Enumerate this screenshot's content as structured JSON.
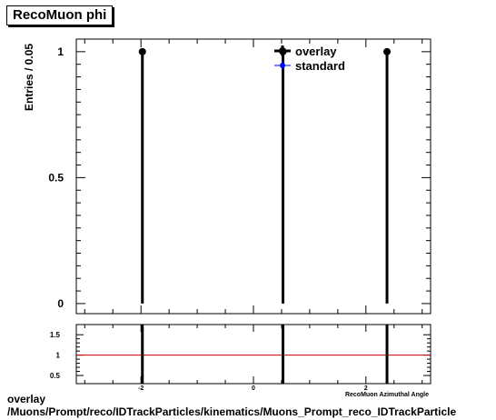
{
  "title": "RecoMuon phi",
  "footer": {
    "line1": "overlay",
    "line2": "/Muons/Prompt/reco/IDTrackParticles/kinematics/Muons_Prompt_reco_IDTrackParticle"
  },
  "chart_data": [
    {
      "type": "scatter",
      "title": "RecoMuon phi",
      "xlabel": "RecoMuon Azimuthal Angle",
      "ylabel": "Entries / 0.05",
      "xlim": [
        -3.15,
        3.15
      ],
      "ylim": [
        -0.04,
        1.05
      ],
      "yticks": [
        0,
        0.5,
        1
      ],
      "ytick_labels": [
        "0",
        "0.5",
        "1"
      ],
      "legend": {
        "placement": "top-right",
        "entries": [
          "overlay",
          "standard"
        ]
      },
      "series": [
        {
          "name": "overlay",
          "color": "#000000",
          "points": [
            {
              "x": -1.975,
              "y": 1
            },
            {
              "x": 0.525,
              "y": 1
            },
            {
              "x": 2.375,
              "y": 1
            }
          ]
        },
        {
          "name": "standard",
          "color": "#0000ff",
          "points": []
        }
      ]
    },
    {
      "type": "line",
      "xlabel": "RecoMuon Azimuthal Angle",
      "xlim": [
        -3.15,
        3.15
      ],
      "ylim": [
        0.3,
        1.75
      ],
      "xticks": [
        -2,
        0,
        2
      ],
      "xtick_labels": [
        "-2",
        "0",
        "2"
      ],
      "yticks": [
        0.5,
        1,
        1.5
      ],
      "ytick_labels": [
        "0.5",
        "1",
        "1.5"
      ],
      "reference_line": {
        "y": 1,
        "color": "#cc0000"
      },
      "ratio_points": [
        {
          "x": -1.975,
          "y": 1
        },
        {
          "x": 0.525,
          "y": 1
        },
        {
          "x": 2.375,
          "y": 1
        }
      ]
    }
  ]
}
